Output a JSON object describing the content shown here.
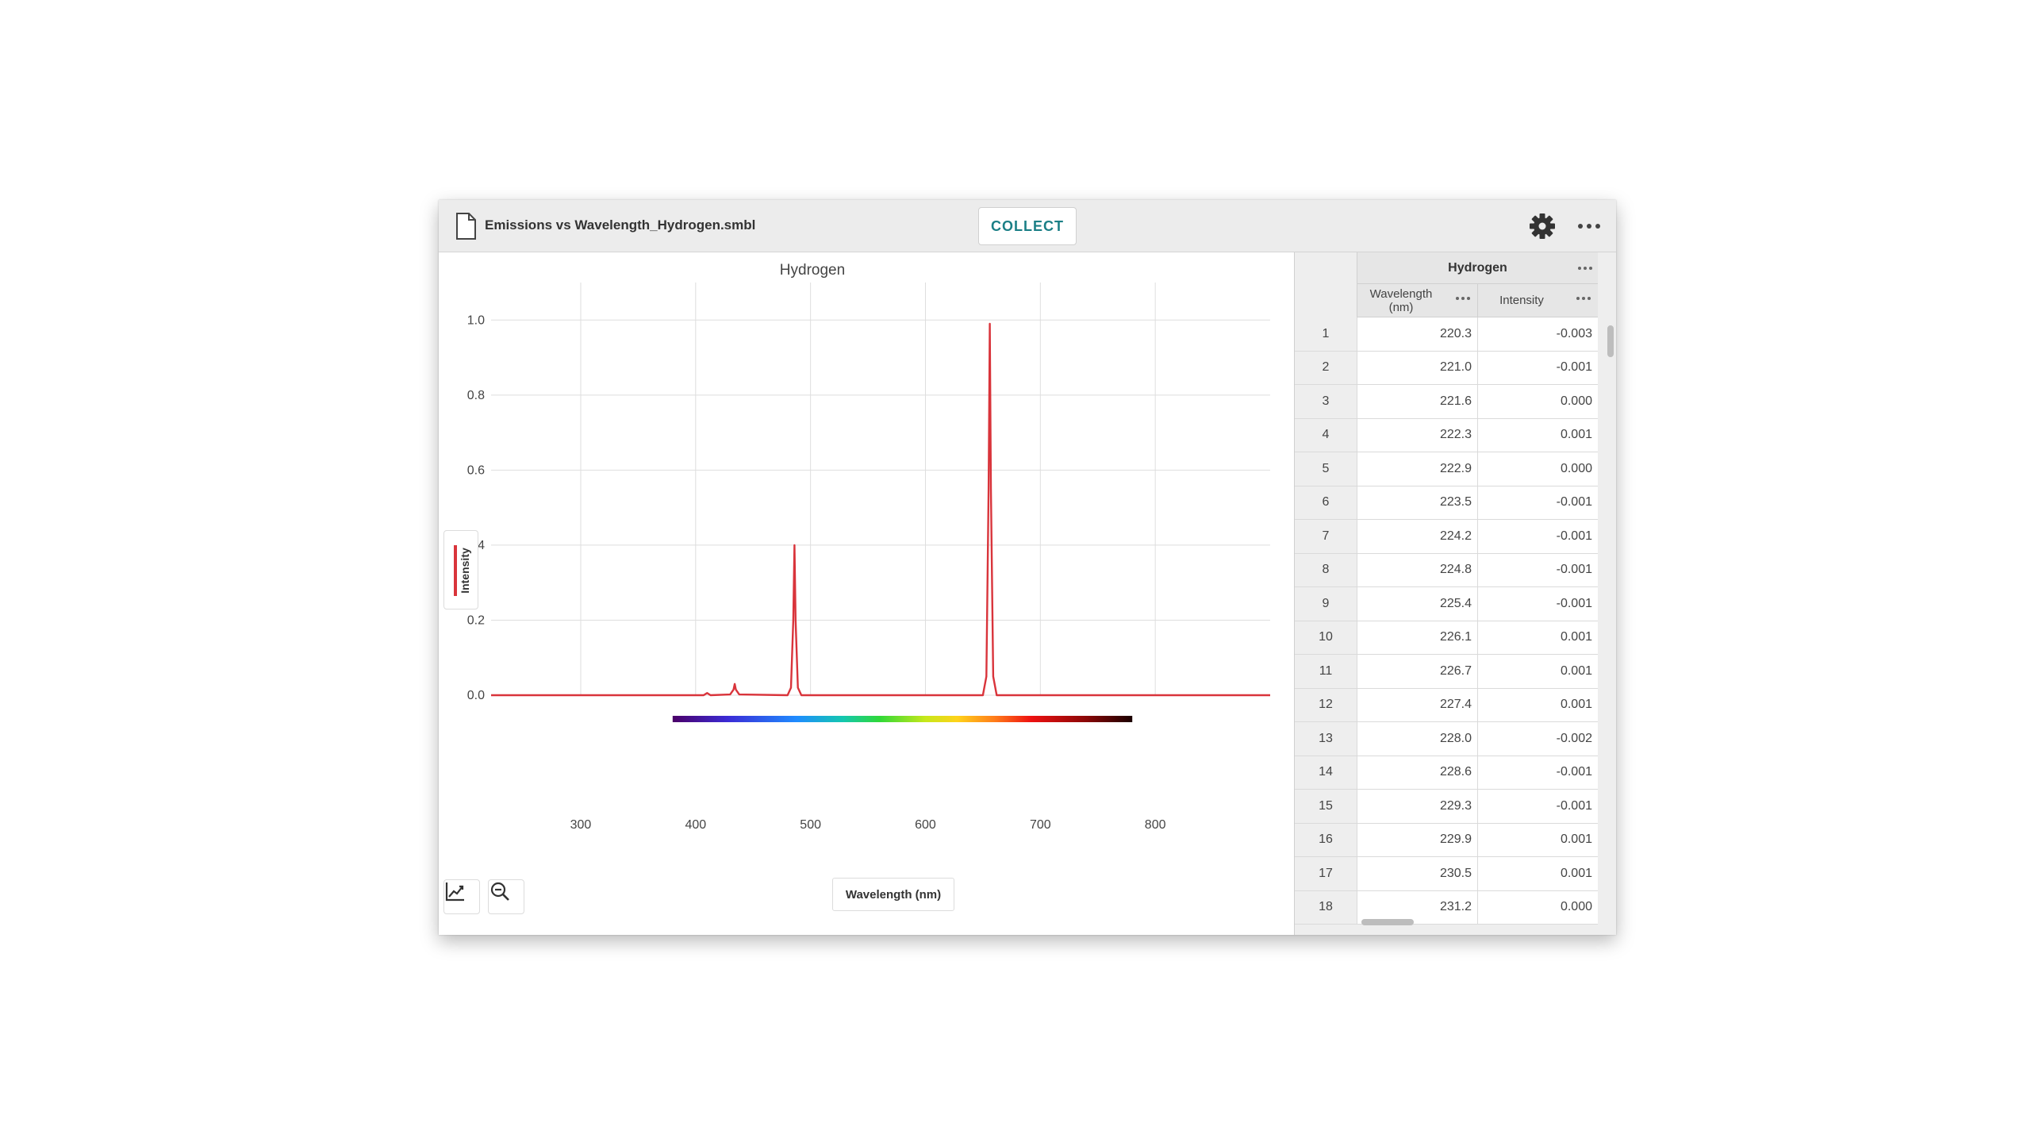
{
  "window": {
    "title": "Emissions vs Wavelength_Hydrogen.smbl",
    "collect_label": "COLLECT"
  },
  "icons": {
    "file": "file-icon",
    "settings": "gear-icon",
    "more": "more-dots-icon",
    "graph_tools": "graph-tools-icon",
    "zoom_out": "zoom-out-icon"
  },
  "colors": {
    "accent": "#1b7f86",
    "series": "#d9343b"
  },
  "chart_data": {
    "type": "line",
    "title": "Hydrogen",
    "xlabel": "Wavelength (nm)",
    "ylabel": "Intensity",
    "xlim": [
      222,
      900
    ],
    "ylim": [
      0,
      1.1
    ],
    "x_ticks": [
      300,
      400,
      500,
      600,
      700,
      800
    ],
    "y_ticks": [
      0.0,
      0.2,
      0.4,
      0.6,
      0.8,
      1.0
    ],
    "x_tick_labels": [
      "300",
      "400",
      "500",
      "600",
      "700",
      "800"
    ],
    "y_tick_labels": [
      "0.0",
      "0.2",
      "0.4",
      "0.6",
      "0.8",
      "1.0"
    ],
    "grid": true,
    "legend": "left-vertical",
    "spectrum_band": [
      380,
      780
    ],
    "series": [
      {
        "name": "Intensity",
        "x": [
          222,
          300,
          380,
          407,
          410,
          413,
          430,
          433,
          434,
          435,
          438,
          480,
          483,
          485,
          486,
          487,
          489,
          492,
          650,
          653,
          655,
          656,
          657,
          659,
          662,
          900
        ],
        "y": [
          0,
          0,
          0,
          0,
          0.006,
          0,
          0.002,
          0.015,
          0.03,
          0.015,
          0.002,
          0,
          0.02,
          0.2,
          0.4,
          0.2,
          0.02,
          0,
          0,
          0.05,
          0.55,
          0.99,
          0.55,
          0.05,
          0,
          0
        ]
      }
    ]
  },
  "table": {
    "group_title": "Hydrogen",
    "columns": [
      {
        "label_line1": "Wavelength",
        "label_line2": "(nm)"
      },
      {
        "label_line1": "Intensity",
        "label_line2": ""
      }
    ],
    "rows": [
      {
        "idx": "1",
        "wavelength": "220.3",
        "intensity": "-0.003"
      },
      {
        "idx": "2",
        "wavelength": "221.0",
        "intensity": "-0.001"
      },
      {
        "idx": "3",
        "wavelength": "221.6",
        "intensity": "0.000"
      },
      {
        "idx": "4",
        "wavelength": "222.3",
        "intensity": "0.001"
      },
      {
        "idx": "5",
        "wavelength": "222.9",
        "intensity": "0.000"
      },
      {
        "idx": "6",
        "wavelength": "223.5",
        "intensity": "-0.001"
      },
      {
        "idx": "7",
        "wavelength": "224.2",
        "intensity": "-0.001"
      },
      {
        "idx": "8",
        "wavelength": "224.8",
        "intensity": "-0.001"
      },
      {
        "idx": "9",
        "wavelength": "225.4",
        "intensity": "-0.001"
      },
      {
        "idx": "10",
        "wavelength": "226.1",
        "intensity": "0.001"
      },
      {
        "idx": "11",
        "wavelength": "226.7",
        "intensity": "0.001"
      },
      {
        "idx": "12",
        "wavelength": "227.4",
        "intensity": "0.001"
      },
      {
        "idx": "13",
        "wavelength": "228.0",
        "intensity": "-0.002"
      },
      {
        "idx": "14",
        "wavelength": "228.6",
        "intensity": "-0.001"
      },
      {
        "idx": "15",
        "wavelength": "229.3",
        "intensity": "-0.001"
      },
      {
        "idx": "16",
        "wavelength": "229.9",
        "intensity": "0.001"
      },
      {
        "idx": "17",
        "wavelength": "230.5",
        "intensity": "0.001"
      },
      {
        "idx": "18",
        "wavelength": "231.2",
        "intensity": "0.000"
      }
    ]
  }
}
